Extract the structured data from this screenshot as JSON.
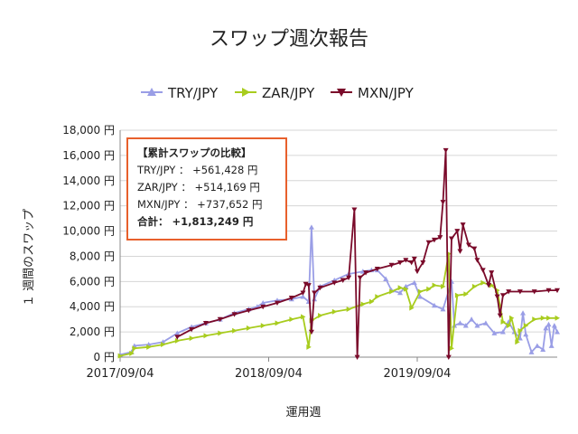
{
  "chart_data": {
    "type": "line",
    "title": "スワップ週次報告",
    "xlabel": "運用週",
    "ylabel": "１ 週間のスワップ",
    "ylim": [
      0,
      18000
    ],
    "yticks": [
      "0 円",
      "2,000 円",
      "4,000 円",
      "6,000 円",
      "8,000 円",
      "10,000 円",
      "12,000 円",
      "14,000 円",
      "16,000 円",
      "18,000 円"
    ],
    "xticks": [
      {
        "label": "2017/09/04",
        "week": 0
      },
      {
        "label": "2018/09/04",
        "week": 52
      },
      {
        "label": "2019/09/04",
        "week": 104
      }
    ],
    "xlim": [
      0,
      153
    ],
    "legend_position": "top",
    "series": [
      {
        "name": "TRY/JPY",
        "color": "#9a9ee6",
        "marker": "triangle",
        "points": [
          [
            0,
            200
          ],
          [
            4,
            400
          ],
          [
            5,
            900
          ],
          [
            10,
            1000
          ],
          [
            15,
            1200
          ],
          [
            20,
            1900
          ],
          [
            25,
            2400
          ],
          [
            30,
            2700
          ],
          [
            35,
            3000
          ],
          [
            40,
            3500
          ],
          [
            45,
            3800
          ],
          [
            48,
            4000
          ],
          [
            50,
            4300
          ],
          [
            55,
            4500
          ],
          [
            60,
            4600
          ],
          [
            64,
            4800
          ],
          [
            66,
            4400
          ],
          [
            67,
            10300
          ],
          [
            68,
            4600
          ],
          [
            70,
            5600
          ],
          [
            75,
            6100
          ],
          [
            80,
            6600
          ],
          [
            85,
            6800
          ],
          [
            88,
            6900
          ],
          [
            90,
            6900
          ],
          [
            93,
            6200
          ],
          [
            95,
            5300
          ],
          [
            98,
            5100
          ],
          [
            100,
            5600
          ],
          [
            103,
            5900
          ],
          [
            105,
            4800
          ],
          [
            110,
            4100
          ],
          [
            113,
            3800
          ],
          [
            116,
            6000
          ],
          [
            117,
            2500
          ],
          [
            119,
            2700
          ],
          [
            121,
            2500
          ],
          [
            123,
            3000
          ],
          [
            125,
            2500
          ],
          [
            128,
            2700
          ],
          [
            131,
            1900
          ],
          [
            134,
            2000
          ],
          [
            136,
            2800
          ],
          [
            138,
            2000
          ],
          [
            140,
            1500
          ],
          [
            141,
            3500
          ],
          [
            142,
            1800
          ],
          [
            144,
            400
          ],
          [
            146,
            900
          ],
          [
            148,
            600
          ],
          [
            149,
            2300
          ],
          [
            150,
            2600
          ],
          [
            151,
            900
          ],
          [
            152,
            2500
          ],
          [
            153,
            2000
          ]
        ]
      },
      {
        "name": "ZAR/JPY",
        "color": "#a8cc1e",
        "marker": "triangle-right",
        "points": [
          [
            0,
            100
          ],
          [
            4,
            300
          ],
          [
            5,
            700
          ],
          [
            10,
            800
          ],
          [
            15,
            1000
          ],
          [
            20,
            1300
          ],
          [
            25,
            1500
          ],
          [
            30,
            1700
          ],
          [
            35,
            1900
          ],
          [
            40,
            2100
          ],
          [
            45,
            2300
          ],
          [
            50,
            2500
          ],
          [
            55,
            2700
          ],
          [
            60,
            3000
          ],
          [
            64,
            3200
          ],
          [
            66,
            800
          ],
          [
            67,
            2900
          ],
          [
            70,
            3300
          ],
          [
            75,
            3600
          ],
          [
            80,
            3800
          ],
          [
            85,
            4200
          ],
          [
            88,
            4400
          ],
          [
            90,
            4800
          ],
          [
            95,
            5200
          ],
          [
            98,
            5500
          ],
          [
            100,
            5400
          ],
          [
            102,
            3900
          ],
          [
            105,
            5200
          ],
          [
            108,
            5400
          ],
          [
            110,
            5700
          ],
          [
            113,
            5600
          ],
          [
            115,
            8200
          ],
          [
            116,
            700
          ],
          [
            118,
            4900
          ],
          [
            121,
            5000
          ],
          [
            124,
            5600
          ],
          [
            127,
            5900
          ],
          [
            130,
            5700
          ],
          [
            132,
            5300
          ],
          [
            134,
            2800
          ],
          [
            136,
            2500
          ],
          [
            137,
            3100
          ],
          [
            139,
            1200
          ],
          [
            140,
            2100
          ],
          [
            142,
            2500
          ],
          [
            145,
            3000
          ],
          [
            148,
            3100
          ],
          [
            150,
            3100
          ],
          [
            153,
            3100
          ]
        ]
      },
      {
        "name": "MXN/JPY",
        "color": "#7a0a2a",
        "marker": "triangle-down",
        "points": [
          [
            20,
            1600
          ],
          [
            25,
            2200
          ],
          [
            30,
            2700
          ],
          [
            35,
            3000
          ],
          [
            40,
            3400
          ],
          [
            45,
            3700
          ],
          [
            50,
            4000
          ],
          [
            55,
            4300
          ],
          [
            60,
            4700
          ],
          [
            64,
            5100
          ],
          [
            65,
            5800
          ],
          [
            66,
            5700
          ],
          [
            67,
            2000
          ],
          [
            68,
            5100
          ],
          [
            70,
            5500
          ],
          [
            75,
            5900
          ],
          [
            78,
            6100
          ],
          [
            80,
            6300
          ],
          [
            82,
            11700
          ],
          [
            83,
            0
          ],
          [
            84,
            6300
          ],
          [
            86,
            6700
          ],
          [
            90,
            7000
          ],
          [
            95,
            7300
          ],
          [
            98,
            7500
          ],
          [
            100,
            7700
          ],
          [
            102,
            7500
          ],
          [
            103,
            7800
          ],
          [
            104,
            6800
          ],
          [
            106,
            7500
          ],
          [
            108,
            9100
          ],
          [
            110,
            9300
          ],
          [
            112,
            9500
          ],
          [
            113,
            12300
          ],
          [
            114,
            16400
          ],
          [
            115,
            0
          ],
          [
            116,
            9400
          ],
          [
            118,
            10000
          ],
          [
            119,
            8400
          ],
          [
            120,
            10500
          ],
          [
            122,
            8900
          ],
          [
            124,
            8600
          ],
          [
            125,
            7700
          ],
          [
            127,
            6900
          ],
          [
            129,
            5700
          ],
          [
            130,
            6700
          ],
          [
            132,
            4800
          ],
          [
            133,
            3300
          ],
          [
            134,
            4900
          ],
          [
            136,
            5200
          ],
          [
            140,
            5200
          ],
          [
            145,
            5200
          ],
          [
            150,
            5300
          ],
          [
            153,
            5300
          ]
        ]
      }
    ]
  },
  "info_box": {
    "header": "【累計スワップの比較】",
    "lines": [
      "TRY/JPY ： +561,428 円",
      "ZAR/JPY ： +514,169 円",
      "MXN/JPY ： +737,652 円"
    ],
    "total": "合計： +1,813,249 円"
  }
}
